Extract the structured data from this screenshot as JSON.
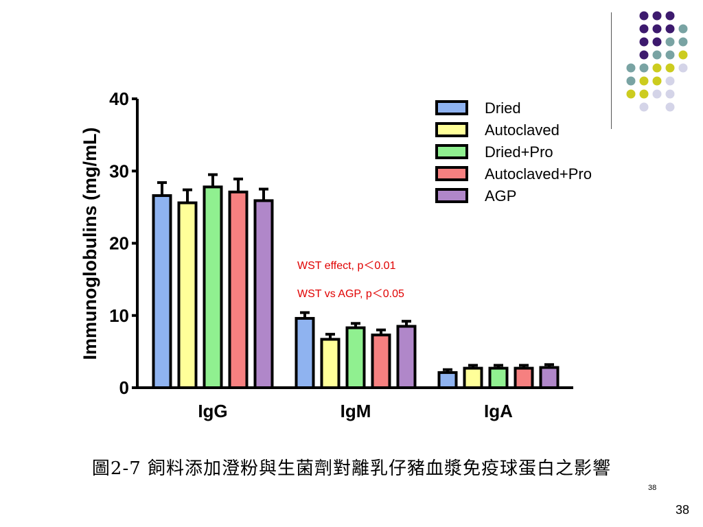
{
  "chart_data": {
    "type": "bar",
    "categories": [
      "IgG",
      "IgM",
      "IgA"
    ],
    "ylabel": "Immunoglobulins (mg/mL)",
    "ylim": [
      0,
      40
    ],
    "yticks": [
      "0",
      "10",
      "20",
      "30",
      "40"
    ],
    "series": [
      {
        "name": "Dried",
        "color": "#8fb3f0",
        "values": [
          26.6,
          9.6,
          2.1
        ],
        "errors": [
          1.8,
          0.8,
          0.4
        ]
      },
      {
        "name": "Autoclaved",
        "color": "#ffff99",
        "values": [
          25.6,
          6.7,
          2.7
        ],
        "errors": [
          1.8,
          0.7,
          0.4
        ]
      },
      {
        "name": "Dried+Pro",
        "color": "#90f090",
        "values": [
          27.8,
          8.3,
          2.7
        ],
        "errors": [
          1.7,
          0.6,
          0.4
        ]
      },
      {
        "name": "Autoclaved+Pro",
        "color": "#f68080",
        "values": [
          27.1,
          7.3,
          2.7
        ],
        "errors": [
          1.8,
          0.7,
          0.4
        ]
      },
      {
        "name": "AGP",
        "color": "#b087c9",
        "values": [
          25.9,
          8.5,
          2.8
        ],
        "errors": [
          1.6,
          0.7,
          0.4
        ]
      }
    ],
    "annotations": [
      "WST effect, p＜0.01",
      "WST vs AGP, p＜0.05"
    ],
    "annotation_color": "#e00000",
    "legend_position": "top-right"
  },
  "caption": "圖2-7 飼料添加澄粉與生菌劑對離乳仔豬血漿免疫球蛋白之影響",
  "page_number_small": "38",
  "page_number": "38",
  "decor_colors": {
    "purple": "#3d1a6e",
    "teal": "#79a3a3",
    "yellow": "#cccc1f",
    "lavender": "#d4d4e8"
  }
}
